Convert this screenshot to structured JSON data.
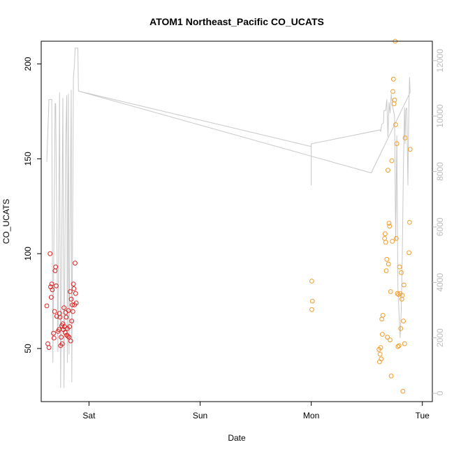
{
  "chart_data": {
    "type": "scatter",
    "title": "ATOM1 Northeast_Pacific CO_UCATS",
    "xlabel": "Date",
    "ylabel": "CO_UCATS",
    "x_ticks": [
      {
        "label": "Sat",
        "day": 1
      },
      {
        "label": "Sun",
        "day": 2
      },
      {
        "label": "Mon",
        "day": 3
      },
      {
        "label": "Tue",
        "day": 4
      }
    ],
    "xlim_days": [
      0.57,
      4.09
    ],
    "ylim": [
      22,
      212
    ],
    "y_ticks": [
      50,
      100,
      150,
      200
    ],
    "y2lim": [
      -300,
      12700
    ],
    "y2_ticks": [
      0,
      2000,
      4000,
      6000,
      8000,
      10000,
      12000
    ],
    "colors": {
      "series1": "#dd2222",
      "series2": "#f39c28",
      "line": "#c8c8c8",
      "right_axis": "#bbbbbb",
      "frame": "#000000"
    },
    "series": [
      {
        "color": "series1",
        "points": [
          [
            0.62,
            72.5
          ],
          [
            0.63,
            52.5
          ],
          [
            0.64,
            50.5
          ],
          [
            0.65,
            100
          ],
          [
            0.655,
            82.5
          ],
          [
            0.66,
            77
          ],
          [
            0.665,
            84
          ],
          [
            0.67,
            81
          ],
          [
            0.68,
            58
          ],
          [
            0.685,
            55.5
          ],
          [
            0.69,
            69.5
          ],
          [
            0.695,
            91
          ],
          [
            0.7,
            93
          ],
          [
            0.705,
            83
          ],
          [
            0.71,
            67
          ],
          [
            0.72,
            59
          ],
          [
            0.73,
            60
          ],
          [
            0.735,
            68.5
          ],
          [
            0.74,
            66.5
          ],
          [
            0.745,
            51.5
          ],
          [
            0.75,
            56
          ],
          [
            0.755,
            62
          ],
          [
            0.76,
            52.5
          ],
          [
            0.765,
            63
          ],
          [
            0.77,
            60
          ],
          [
            0.775,
            71.5
          ],
          [
            0.78,
            61.5
          ],
          [
            0.785,
            58.5
          ],
          [
            0.79,
            69
          ],
          [
            0.795,
            66.5
          ],
          [
            0.8,
            57
          ],
          [
            0.805,
            60.5
          ],
          [
            0.81,
            56.5
          ],
          [
            0.815,
            70
          ],
          [
            0.82,
            56
          ],
          [
            0.825,
            61.5
          ],
          [
            0.83,
            80
          ],
          [
            0.835,
            54
          ],
          [
            0.84,
            76
          ],
          [
            0.845,
            64.5
          ],
          [
            0.85,
            73
          ],
          [
            0.855,
            69.5
          ],
          [
            0.86,
            84
          ],
          [
            0.865,
            81.5
          ],
          [
            0.87,
            73
          ],
          [
            0.875,
            95
          ],
          [
            0.88,
            79
          ],
          [
            0.885,
            74
          ]
        ]
      },
      {
        "color": "series2",
        "points": [
          [
            3.005,
            85.5
          ],
          [
            3.01,
            75
          ],
          [
            3.005,
            70.5
          ],
          [
            3.61,
            49.5
          ],
          [
            3.615,
            43
          ],
          [
            3.62,
            47
          ],
          [
            3.625,
            50.5
          ],
          [
            3.63,
            44.5
          ],
          [
            3.635,
            65.5
          ],
          [
            3.64,
            57.5
          ],
          [
            3.645,
            67.5
          ],
          [
            3.66,
            108
          ],
          [
            3.665,
            110.5
          ],
          [
            3.67,
            106
          ],
          [
            3.675,
            91
          ],
          [
            3.68,
            97
          ],
          [
            3.685,
            56
          ],
          [
            3.69,
            144
          ],
          [
            3.695,
            94.5
          ],
          [
            3.7,
            116
          ],
          [
            3.705,
            114.5
          ],
          [
            3.71,
            54.5
          ],
          [
            3.715,
            80
          ],
          [
            3.72,
            35.5
          ],
          [
            3.725,
            149
          ],
          [
            3.73,
            106.5
          ],
          [
            3.735,
            185.5
          ],
          [
            3.74,
            192
          ],
          [
            3.745,
            179
          ],
          [
            3.75,
            181
          ],
          [
            3.755,
            212
          ],
          [
            3.76,
            168
          ],
          [
            3.765,
            108
          ],
          [
            3.77,
            158
          ],
          [
            3.775,
            79
          ],
          [
            3.78,
            51
          ],
          [
            3.785,
            78.5
          ],
          [
            3.79,
            51.5
          ],
          [
            3.795,
            93
          ],
          [
            3.8,
            79
          ],
          [
            3.805,
            60.5
          ],
          [
            3.81,
            90
          ],
          [
            3.815,
            76
          ],
          [
            3.82,
            78
          ],
          [
            3.825,
            27.5
          ],
          [
            3.83,
            64.5
          ],
          [
            3.835,
            83.5
          ],
          [
            3.84,
            52.5
          ],
          [
            3.845,
            161
          ],
          [
            3.88,
            100.5
          ],
          [
            3.885,
            116.5
          ],
          [
            3.89,
            155
          ]
        ]
      }
    ],
    "line": {
      "axis": "right",
      "points": [
        [
          0.62,
          8350
        ],
        [
          0.64,
          10600
        ],
        [
          0.65,
          10600
        ],
        [
          0.665,
          10600
        ],
        [
          0.675,
          1100
        ],
        [
          0.695,
          10450
        ],
        [
          0.7,
          10450
        ],
        [
          0.72,
          1500
        ],
        [
          0.735,
          10850
        ],
        [
          0.745,
          200
        ],
        [
          0.765,
          10650
        ],
        [
          0.775,
          200
        ],
        [
          0.79,
          9000
        ],
        [
          0.8,
          10750
        ],
        [
          0.805,
          1100
        ],
        [
          0.815,
          10800
        ],
        [
          0.82,
          1400
        ],
        [
          0.84,
          10950
        ],
        [
          0.845,
          400
        ],
        [
          0.86,
          11400
        ],
        [
          0.87,
          11900
        ],
        [
          0.875,
          12450
        ],
        [
          0.9,
          12450
        ],
        [
          0.905,
          10900
        ],
        [
          3.0,
          8900
        ],
        [
          3.0,
          7500
        ],
        [
          3.0,
          9000
        ],
        [
          3.62,
          9500
        ],
        [
          3.625,
          9450
        ],
        [
          3.635,
          9700
        ],
        [
          3.65,
          9750
        ],
        [
          3.655,
          10200
        ],
        [
          3.67,
          10200
        ],
        [
          3.68,
          10600
        ],
        [
          3.69,
          9250
        ],
        [
          3.7,
          10500
        ],
        [
          3.71,
          10100
        ],
        [
          3.72,
          10800
        ],
        [
          3.73,
          10400
        ],
        [
          3.75,
          10000
        ],
        [
          3.76,
          5500
        ],
        [
          3.77,
          9300
        ],
        [
          3.78,
          3800
        ],
        [
          3.8,
          2000
        ],
        [
          3.81,
          3000
        ],
        [
          3.82,
          5000
        ],
        [
          3.83,
          8200
        ],
        [
          3.84,
          10300
        ],
        [
          3.845,
          9000
        ],
        [
          3.85,
          10200
        ],
        [
          3.86,
          10300
        ],
        [
          3.87,
          7500
        ],
        [
          3.875,
          9300
        ],
        [
          3.88,
          10600
        ],
        [
          3.885,
          11400
        ],
        [
          3.89,
          10850
        ],
        [
          3.54,
          7950
        ],
        [
          0.905,
          10900
        ]
      ]
    }
  }
}
